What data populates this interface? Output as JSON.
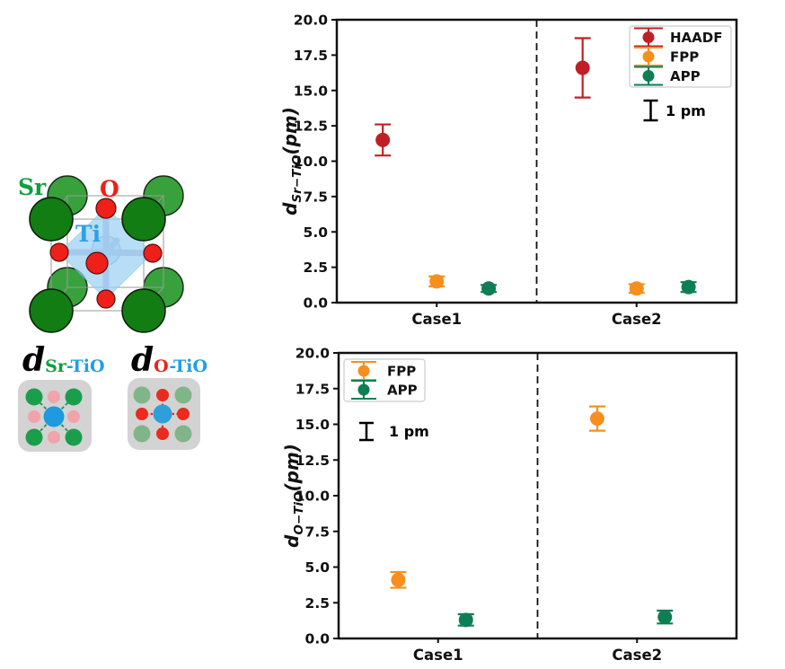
{
  "figure": {
    "background": "#ffffff"
  },
  "left_panel": {
    "atom_labels": {
      "sr": "Sr",
      "o": "O",
      "ti": "Ti"
    },
    "atom_colors": {
      "sr_front": "#117d13",
      "sr_back": "#38a13c",
      "o": "#ee2019",
      "ti_label": "#2ba1e8",
      "octahedron": "#9ed1f5",
      "bond": "#a9b4d2",
      "ti_sphere": "#c9e4f8"
    },
    "schematics": [
      {
        "title_main": "d",
        "title_sub": "Sr",
        "title_rest": "-TiO",
        "sub_color": "#0f9f3f",
        "rest_color": "#1d9fe8",
        "box_color": "#d3d3d3",
        "corner_atom_color": "#1a9e4b",
        "edge_atom_color": "#f0a3ab",
        "center_atom_color": "#1e9ae0",
        "bond_line_color": "#159a47",
        "bond_pattern": "diagonal-dashed"
      },
      {
        "title_main": "d",
        "title_sub": "O",
        "title_rest": "-TiO",
        "sub_color": "#ee2019",
        "rest_color": "#1d9fe8",
        "box_color": "#d3d3d3",
        "corner_atom_color": "#80b589",
        "edge_atom_color": "#ea2b1f",
        "center_atom_color": "#2f9fdb",
        "bond_line_color": "#ea2b1f",
        "bond_pattern": "cross-dotted"
      }
    ]
  },
  "chart_data": [
    {
      "type": "scatter",
      "ylabel": {
        "main": "d",
        "sub": "Sr−TiO",
        "suffix": "(pm)"
      },
      "ylim": [
        0,
        20
      ],
      "ytick_step": 2.5,
      "categories": [
        "Case1",
        "Case2"
      ],
      "series": [
        {
          "name": "HAADF",
          "color": "#bf2026",
          "offset": -0.27,
          "points": [
            {
              "category": "Case1",
              "y": 11.5,
              "err": 1.1
            },
            {
              "category": "Case2",
              "y": 16.6,
              "err": 2.1
            }
          ]
        },
        {
          "name": "FPP",
          "color": "#f78f1e",
          "offset": 0.0,
          "points": [
            {
              "category": "Case1",
              "y": 1.5,
              "err": 0.35
            },
            {
              "category": "Case2",
              "y": 1.0,
              "err": 0.3
            }
          ]
        },
        {
          "name": "APP",
          "color": "#0e7e54",
          "offset": 0.26,
          "points": [
            {
              "category": "Case1",
              "y": 1.0,
              "err": 0.25
            },
            {
              "category": "Case2",
              "y": 1.1,
              "err": 0.35
            }
          ]
        }
      ],
      "separator_x": 1.5,
      "legend": {
        "entries": [
          "HAADF",
          "FPP",
          "APP"
        ],
        "position": "top-right"
      },
      "scale_bar_label": "1 pm",
      "grid": false
    },
    {
      "type": "scatter",
      "ylabel": {
        "main": "d",
        "sub": "O−TiO",
        "suffix": "(pm)"
      },
      "ylim": [
        0,
        20
      ],
      "ytick_step": 2.5,
      "categories": [
        "Case1",
        "Case2"
      ],
      "series": [
        {
          "name": "FPP",
          "color": "#f78f1e",
          "offset": -0.2,
          "points": [
            {
              "category": "Case1",
              "y": 4.1,
              "err": 0.55
            },
            {
              "category": "Case2",
              "y": 15.4,
              "err": 0.85
            }
          ]
        },
        {
          "name": "APP",
          "color": "#0e7e54",
          "offset": 0.14,
          "points": [
            {
              "category": "Case1",
              "y": 1.3,
              "err": 0.4
            },
            {
              "category": "Case2",
              "y": 1.5,
              "err": 0.45
            }
          ]
        }
      ],
      "separator_x": 1.5,
      "legend": {
        "entries": [
          "FPP",
          "APP"
        ],
        "position": "top-left"
      },
      "scale_bar_label": "1 pm",
      "grid": false
    }
  ]
}
